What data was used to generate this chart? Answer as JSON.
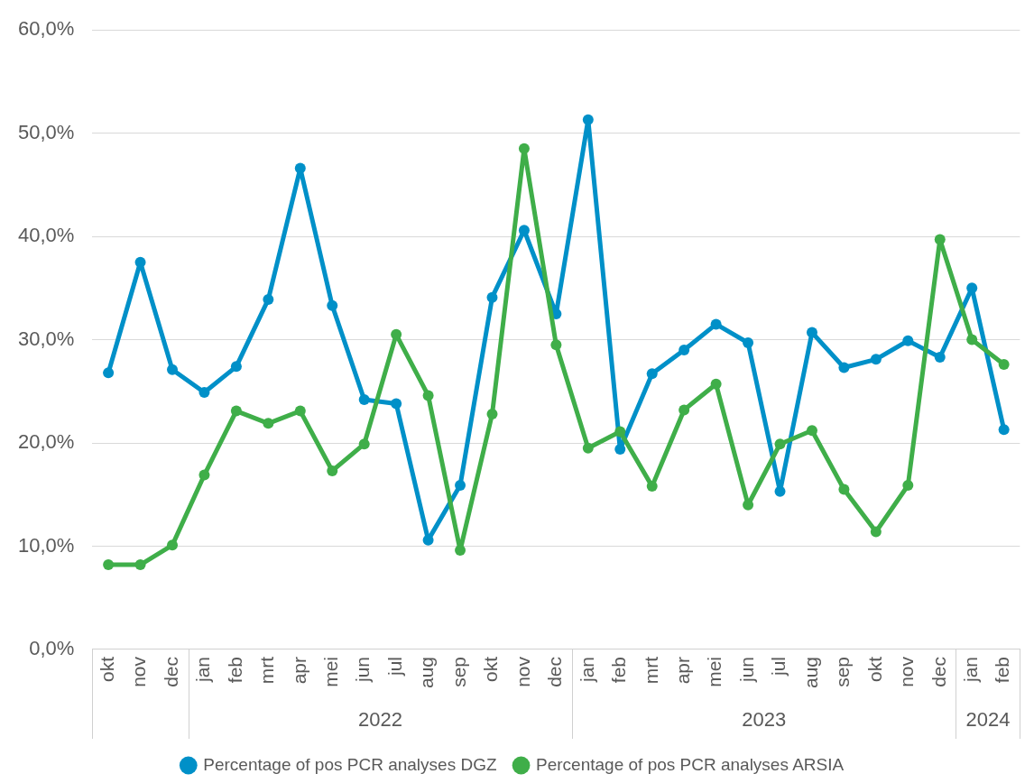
{
  "chart_data": {
    "type": "line",
    "categories": [
      "okt",
      "nov",
      "dec",
      "jan",
      "feb",
      "mrt",
      "apr",
      "mei",
      "jun",
      "jul",
      "aug",
      "sep",
      "okt",
      "nov",
      "dec",
      "jan",
      "feb",
      "mrt",
      "apr",
      "mei",
      "jun",
      "jul",
      "aug",
      "sep",
      "okt",
      "nov",
      "dec",
      "jan",
      "feb"
    ],
    "series": [
      {
        "name": "Percentage of pos PCR analyses DGZ",
        "color": "#0090c8",
        "values": [
          26.8,
          37.5,
          27.1,
          24.9,
          27.4,
          33.9,
          46.6,
          33.3,
          24.2,
          23.8,
          10.6,
          15.9,
          34.1,
          40.6,
          32.5,
          51.3,
          19.4,
          26.7,
          29.0,
          31.5,
          29.7,
          15.3,
          30.7,
          27.3,
          28.1,
          29.9,
          28.3,
          35.0,
          21.3
        ]
      },
      {
        "name": "Percentage of pos PCR analyses ARSIA",
        "color": "#3fae49",
        "values": [
          8.2,
          8.2,
          10.1,
          16.9,
          23.1,
          21.9,
          23.1,
          17.3,
          19.9,
          30.5,
          24.6,
          9.6,
          22.8,
          48.5,
          29.5,
          19.5,
          21.1,
          15.8,
          23.2,
          25.7,
          14.0,
          19.9,
          21.2,
          15.5,
          11.4,
          15.9,
          39.7,
          30.0,
          27.6
        ]
      }
    ],
    "ylim": [
      0,
      60
    ],
    "yticks": [
      {
        "value": 0,
        "label": "0,0%"
      },
      {
        "value": 10,
        "label": "10,0%"
      },
      {
        "value": 20,
        "label": "20,0%"
      },
      {
        "value": 30,
        "label": "30,0%"
      },
      {
        "value": 40,
        "label": "40,0%"
      },
      {
        "value": 50,
        "label": "50,0%"
      },
      {
        "value": 60,
        "label": "60,0%"
      }
    ],
    "annotations": [
      "2022",
      "2023",
      "2024"
    ],
    "grid": "y",
    "legend": "bottom",
    "marker": "circle",
    "line_style": "solid"
  }
}
